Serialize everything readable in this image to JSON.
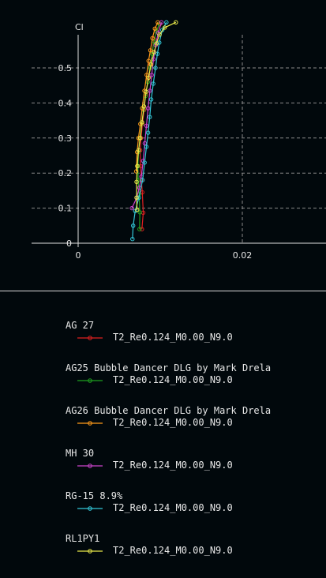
{
  "chart_data": {
    "type": "line",
    "xlabel": "",
    "ylabel": "Cl",
    "x_ticks": [
      "0",
      "0.02"
    ],
    "y_ticks": [
      "0",
      "0.1",
      "0.2",
      "0.3",
      "0.4",
      "0.5"
    ],
    "xlim": [
      -0.0055,
      0.0295
    ],
    "ylim": [
      -0.005,
      0.62
    ],
    "grid": true,
    "legend_placement": "below",
    "series": [
      {
        "name": "AG 27",
        "run": "T2_Re0.124_M0.00_N9.0",
        "color": "#e02020",
        "points": [
          [
            0.00777,
            0.04
          ],
          [
            0.00793,
            0.087
          ],
          [
            0.00782,
            0.145
          ],
          [
            0.0077,
            0.18
          ],
          [
            0.0076,
            0.22
          ],
          [
            0.00756,
            0.265
          ],
          [
            0.00765,
            0.3
          ],
          [
            0.00784,
            0.34
          ],
          [
            0.00804,
            0.38
          ],
          [
            0.00825,
            0.425
          ],
          [
            0.00852,
            0.47
          ],
          [
            0.00879,
            0.51
          ],
          [
            0.00902,
            0.545
          ],
          [
            0.00925,
            0.582
          ],
          [
            0.00955,
            0.605
          ],
          [
            0.00995,
            0.625
          ]
        ]
      },
      {
        "name": "AG25 Bubble Dancer DLG by Mark Drela",
        "run": "T2_Re0.124_M0.00_N9.0",
        "color": "#1fa01f",
        "points": [
          [
            0.00748,
            0.04
          ],
          [
            0.00752,
            0.088
          ],
          [
            0.00742,
            0.14
          ],
          [
            0.00732,
            0.18
          ],
          [
            0.00728,
            0.22
          ],
          [
            0.00735,
            0.26
          ],
          [
            0.00752,
            0.3
          ],
          [
            0.00775,
            0.34
          ],
          [
            0.00797,
            0.38
          ],
          [
            0.00822,
            0.42
          ],
          [
            0.00849,
            0.46
          ],
          [
            0.00875,
            0.5
          ],
          [
            0.009,
            0.54
          ],
          [
            0.00925,
            0.575
          ],
          [
            0.00952,
            0.605
          ],
          [
            0.0099,
            0.625
          ]
        ]
      },
      {
        "name": "AG26 Bubble Dancer DLG by Mark Drela",
        "run": "T2_Re0.124_M0.00_N9.0",
        "color": "#ff9a1a",
        "points": [
          [
            0.00708,
            0.205
          ],
          [
            0.00718,
            0.26
          ],
          [
            0.00735,
            0.3
          ],
          [
            0.00758,
            0.34
          ],
          [
            0.0078,
            0.385
          ],
          [
            0.00808,
            0.435
          ],
          [
            0.00835,
            0.48
          ],
          [
            0.00858,
            0.52
          ],
          [
            0.0088,
            0.55
          ],
          [
            0.00905,
            0.585
          ],
          [
            0.00935,
            0.612
          ],
          [
            0.0097,
            0.63
          ]
        ]
      },
      {
        "name": "MH 30",
        "run": "T2_Re0.124_M0.00_N9.0",
        "color": "#cc44cc",
        "points": [
          [
            0.00655,
            0.1
          ],
          [
            0.00713,
            0.13
          ],
          [
            0.00745,
            0.158
          ],
          [
            0.0077,
            0.19
          ],
          [
            0.00792,
            0.235
          ],
          [
            0.00812,
            0.285
          ],
          [
            0.00832,
            0.335
          ],
          [
            0.00852,
            0.385
          ],
          [
            0.00874,
            0.435
          ],
          [
            0.00896,
            0.48
          ],
          [
            0.00918,
            0.525
          ],
          [
            0.00945,
            0.565
          ],
          [
            0.00975,
            0.6
          ],
          [
            0.01015,
            0.63
          ]
        ]
      },
      {
        "name": "RG-15 8.9%",
        "run": "T2_Re0.124_M0.00_N9.0",
        "color": "#33c7d8",
        "points": [
          [
            0.00662,
            0.012
          ],
          [
            0.0067,
            0.05
          ],
          [
            0.00695,
            0.092
          ],
          [
            0.0074,
            0.13
          ],
          [
            0.00785,
            0.18
          ],
          [
            0.0081,
            0.23
          ],
          [
            0.00832,
            0.275
          ],
          [
            0.00852,
            0.315
          ],
          [
            0.00872,
            0.36
          ],
          [
            0.0089,
            0.41
          ],
          [
            0.00915,
            0.455
          ],
          [
            0.00942,
            0.5
          ],
          [
            0.00965,
            0.54
          ],
          [
            0.00988,
            0.572
          ],
          [
            0.01025,
            0.608
          ],
          [
            0.01075,
            0.63
          ]
        ]
      },
      {
        "name": "RL1PY1",
        "run": "T2_Re0.124_M0.00_N9.0",
        "color": "#e8e84a",
        "points": [
          [
            0.00718,
            0.095
          ],
          [
            0.00712,
            0.13
          ],
          [
            0.00712,
            0.175
          ],
          [
            0.0072,
            0.22
          ],
          [
            0.00736,
            0.265
          ],
          [
            0.00757,
            0.3
          ],
          [
            0.00778,
            0.345
          ],
          [
            0.00802,
            0.39
          ],
          [
            0.00828,
            0.432
          ],
          [
            0.00858,
            0.472
          ],
          [
            0.00888,
            0.51
          ],
          [
            0.00925,
            0.545
          ],
          [
            0.00955,
            0.57
          ],
          [
            0.0099,
            0.595
          ],
          [
            0.01055,
            0.615
          ],
          [
            0.0119,
            0.63
          ]
        ]
      }
    ]
  }
}
